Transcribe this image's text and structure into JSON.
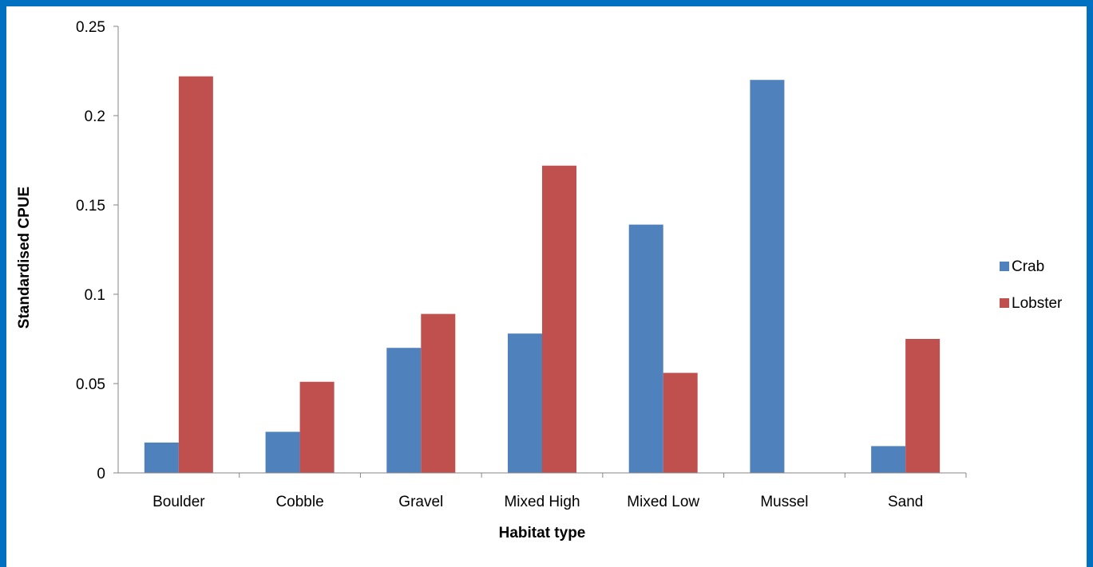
{
  "chart_data": {
    "type": "bar",
    "categories": [
      "Boulder",
      "Cobble",
      "Gravel",
      "Mixed High",
      "Mixed Low",
      "Mussel",
      "Sand"
    ],
    "series": [
      {
        "name": "Crab",
        "values": [
          0.017,
          0.023,
          0.07,
          0.078,
          0.139,
          0.22,
          0.015
        ],
        "color": "#4f81bd"
      },
      {
        "name": "Lobster",
        "values": [
          0.222,
          0.051,
          0.089,
          0.172,
          0.056,
          0.0,
          0.075
        ],
        "color": "#c0504d"
      }
    ],
    "title": "",
    "xlabel": "Habitat type",
    "ylabel": "Standardised CPUE",
    "ylim": [
      0,
      0.25
    ],
    "yticks": [
      "0",
      "0.05",
      "0.1",
      "0.15",
      "0.2",
      "0.25"
    ],
    "grid": false,
    "legend_position": "right"
  },
  "colors": {
    "frame": "#0070c0",
    "background": "#ffffff",
    "axis": "#868686"
  }
}
